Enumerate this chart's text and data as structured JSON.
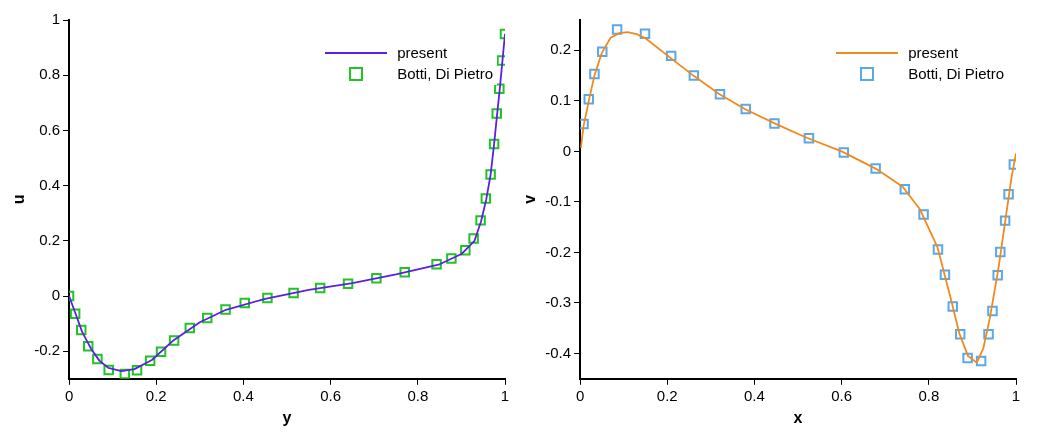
{
  "chart_data": [
    {
      "type": "line",
      "xlabel": "y",
      "ylabel": "u",
      "xlim": [
        0,
        1
      ],
      "ylim": [
        -0.3,
        1
      ],
      "xticks": [
        0,
        0.2,
        0.4,
        0.6,
        0.8,
        1
      ],
      "yticks": [
        -0.2,
        0,
        0.2,
        0.4,
        0.6,
        0.8,
        1
      ],
      "legend": "top right",
      "grid": false,
      "series": [
        {
          "name": "present",
          "type": "line",
          "color": "#5b1fe6",
          "marker": "none",
          "line_style": "solid",
          "x": [
            0,
            0.014,
            0.03,
            0.05,
            0.07,
            0.09,
            0.12,
            0.15,
            0.19,
            0.24,
            0.3,
            0.36,
            0.45,
            0.55,
            0.65,
            0.75,
            0.85,
            0.9,
            0.93,
            0.945,
            0.957,
            0.967,
            0.975,
            0.982,
            0.988,
            0.994,
            1.0
          ],
          "values": [
            0,
            -0.06,
            -0.13,
            -0.19,
            -0.235,
            -0.26,
            -0.272,
            -0.265,
            -0.232,
            -0.16,
            -0.095,
            -0.05,
            -0.01,
            0.022,
            0.047,
            0.078,
            0.115,
            0.152,
            0.2,
            0.27,
            0.35,
            0.44,
            0.55,
            0.66,
            0.75,
            0.85,
            0.95
          ]
        },
        {
          "name": "Botti, Di Pietro",
          "type": "scatter",
          "color": "#22c322",
          "marker": "square",
          "x": [
            0,
            0.014,
            0.028,
            0.044,
            0.065,
            0.091,
            0.128,
            0.156,
            0.186,
            0.211,
            0.241,
            0.277,
            0.317,
            0.359,
            0.403,
            0.455,
            0.515,
            0.576,
            0.64,
            0.705,
            0.77,
            0.843,
            0.877,
            0.909,
            0.928,
            0.944,
            0.956,
            0.967,
            0.975,
            0.981,
            0.987,
            0.993,
            1.0
          ],
          "values": [
            0,
            -0.064,
            -0.123,
            -0.182,
            -0.228,
            -0.268,
            -0.283,
            -0.269,
            -0.235,
            -0.202,
            -0.161,
            -0.116,
            -0.08,
            -0.049,
            -0.025,
            -0.007,
            0.011,
            0.029,
            0.044,
            0.064,
            0.086,
            0.115,
            0.136,
            0.166,
            0.208,
            0.274,
            0.353,
            0.44,
            0.551,
            0.661,
            0.751,
            0.853,
            0.949
          ]
        }
      ]
    },
    {
      "type": "line",
      "xlabel": "x",
      "ylabel": "v",
      "xlim": [
        0,
        1
      ],
      "ylim": [
        -0.45,
        0.26
      ],
      "xticks": [
        0,
        0.2,
        0.4,
        0.6,
        0.8,
        1
      ],
      "yticks": [
        -0.4,
        -0.3,
        -0.2,
        -0.1,
        0,
        0.1,
        0.2
      ],
      "legend": "top right",
      "grid": false,
      "series": [
        {
          "name": "present",
          "type": "line",
          "color": "#f08a1e",
          "marker": "none",
          "line_style": "solid",
          "x": [
            0.002,
            0.008,
            0.02,
            0.033,
            0.05,
            0.07,
            0.09,
            0.109,
            0.13,
            0.15,
            0.2,
            0.26,
            0.32,
            0.38,
            0.45,
            0.52,
            0.6,
            0.68,
            0.74,
            0.78,
            0.82,
            0.85,
            0.87,
            0.89,
            0.91,
            0.925,
            0.94,
            0.96,
            0.98,
            0.99,
            1.0
          ],
          "values": [
            0.007,
            0.05,
            0.1,
            0.15,
            0.195,
            0.225,
            0.234,
            0.236,
            0.232,
            0.224,
            0.19,
            0.15,
            0.113,
            0.083,
            0.054,
            0.027,
            0,
            -0.035,
            -0.07,
            -0.115,
            -0.19,
            -0.29,
            -0.36,
            -0.405,
            -0.418,
            -0.39,
            -0.33,
            -0.23,
            -0.11,
            -0.05,
            -0.004
          ]
        },
        {
          "name": "Botti, Di Pietro",
          "type": "scatter",
          "color": "#5aa8e8",
          "marker": "square",
          "x": [
            0.008,
            0.02,
            0.033,
            0.051,
            0.085,
            0.149,
            0.209,
            0.261,
            0.321,
            0.38,
            0.446,
            0.525,
            0.605,
            0.678,
            0.745,
            0.788,
            0.821,
            0.837,
            0.855,
            0.872,
            0.889,
            0.92,
            0.937,
            0.946,
            0.958,
            0.964,
            0.975,
            0.983,
            0.995
          ],
          "values": [
            0.054,
            0.103,
            0.153,
            0.197,
            0.241,
            0.233,
            0.189,
            0.15,
            0.113,
            0.084,
            0.055,
            0.026,
            -0.002,
            -0.034,
            -0.075,
            -0.125,
            -0.194,
            -0.244,
            -0.307,
            -0.362,
            -0.409,
            -0.415,
            -0.362,
            -0.316,
            -0.245,
            -0.199,
            -0.137,
            -0.085,
            -0.026
          ]
        }
      ]
    }
  ]
}
